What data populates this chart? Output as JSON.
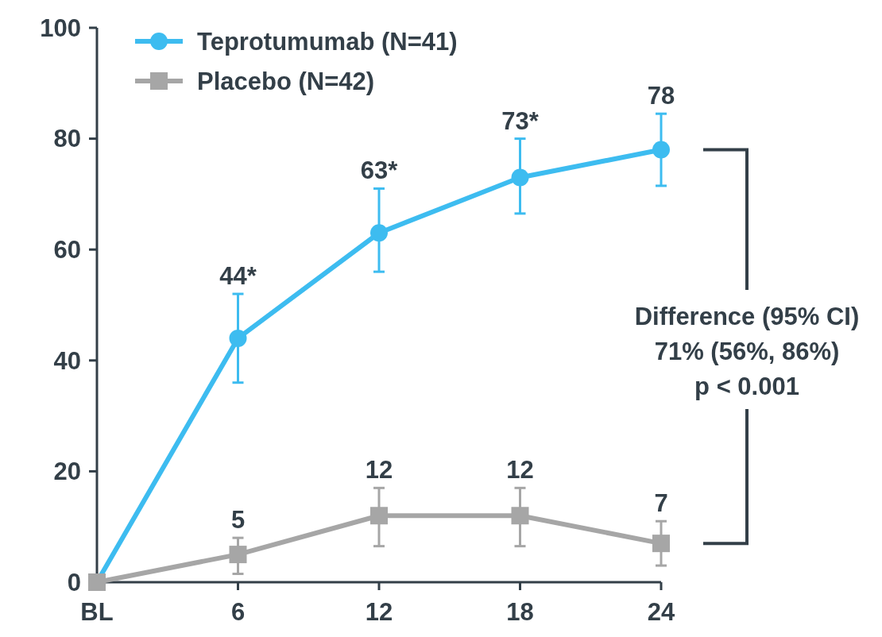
{
  "chart_data": {
    "type": "line",
    "categories": [
      "BL",
      "6",
      "12",
      "18",
      "24"
    ],
    "series": [
      {
        "name": "Teprotumumab (N=41)",
        "color": "#3dbcf0",
        "marker": "circle",
        "values": [
          0,
          44,
          63,
          73,
          78
        ],
        "errors": [
          null,
          [
            36,
            52
          ],
          [
            56,
            71
          ],
          [
            66.5,
            80
          ],
          [
            71.5,
            84.5
          ]
        ],
        "value_labels": [
          null,
          "44*",
          "63*",
          "73*",
          "78"
        ]
      },
      {
        "name": "Placebo (N=42)",
        "color": "#a6a6a6",
        "marker": "square",
        "values": [
          0,
          5,
          12,
          12,
          7
        ],
        "errors": [
          null,
          [
            1.5,
            8
          ],
          [
            6.5,
            17
          ],
          [
            6.5,
            17
          ],
          [
            3,
            11
          ]
        ],
        "value_labels": [
          null,
          "5",
          "12",
          "12",
          "7"
        ]
      }
    ],
    "ylim": [
      0,
      100
    ],
    "yticks": [
      0,
      20,
      40,
      60,
      80,
      100
    ],
    "grid": false,
    "legend": "top left",
    "annotations": [
      "Difference (95% CI)",
      "71% (56%, 86%)",
      "p < 0.001"
    ]
  }
}
